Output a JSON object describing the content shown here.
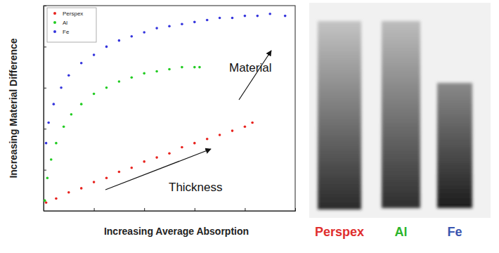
{
  "chart_data": {
    "type": "scatter",
    "x_label": "Increasing Average Absorption",
    "y_label": "Increasing Material Difference",
    "annotations": [
      "Material",
      "Thickness"
    ],
    "xlim": [
      0,
      10
    ],
    "ylim": [
      0,
      10
    ],
    "xticks": [
      0,
      2,
      4,
      6,
      8,
      10
    ],
    "yticks": [
      0,
      2,
      4,
      6,
      8,
      10
    ],
    "tick_labels": false,
    "grid": false,
    "legend": "upper left",
    "marker": "circle",
    "series": [
      {
        "name": "Perspex",
        "color": "#e8231e",
        "x": [
          0.1,
          0.5,
          1.0,
          1.5,
          2.0,
          2.5,
          3.0,
          3.5,
          4.0,
          4.5,
          5.0,
          5.5,
          6.0,
          6.5,
          7.0,
          7.5,
          8.0,
          8.3
        ],
        "values": [
          0.4,
          0.6,
          0.9,
          1.1,
          1.4,
          1.6,
          1.9,
          2.1,
          2.4,
          2.6,
          2.8,
          3.1,
          3.3,
          3.5,
          3.7,
          3.9,
          4.1,
          4.3
        ]
      },
      {
        "name": "Al",
        "color": "#22cc22",
        "x": [
          0.05,
          0.15,
          0.3,
          0.5,
          0.8,
          1.1,
          1.5,
          2.0,
          2.5,
          3.0,
          3.5,
          4.0,
          4.5,
          5.0,
          5.5,
          6.0,
          6.2
        ],
        "values": [
          0.5,
          1.6,
          2.5,
          3.3,
          4.1,
          4.7,
          5.2,
          5.7,
          6.0,
          6.3,
          6.5,
          6.7,
          6.8,
          6.9,
          7.0,
          7.0,
          7.0
        ]
      },
      {
        "name": "Fe",
        "color": "#3535dd",
        "x": [
          0.1,
          0.2,
          0.4,
          0.7,
          1.0,
          1.5,
          2.0,
          2.5,
          3.0,
          3.5,
          4.0,
          4.5,
          5.0,
          5.5,
          6.0,
          6.5,
          7.0,
          7.5,
          8.0,
          8.5,
          9.0,
          9.6
        ],
        "values": [
          3.3,
          4.3,
          5.2,
          6.0,
          6.6,
          7.2,
          7.6,
          8.0,
          8.3,
          8.5,
          8.7,
          8.9,
          9.0,
          9.1,
          9.2,
          9.3,
          9.4,
          9.4,
          9.5,
          9.5,
          9.6,
          9.5
        ]
      }
    ]
  },
  "image_labels": [
    {
      "text": "Perspex",
      "color": "#e02f2f"
    },
    {
      "text": "Al",
      "color": "#2cb52c"
    },
    {
      "text": "Fe",
      "color": "#3a55b0"
    }
  ]
}
